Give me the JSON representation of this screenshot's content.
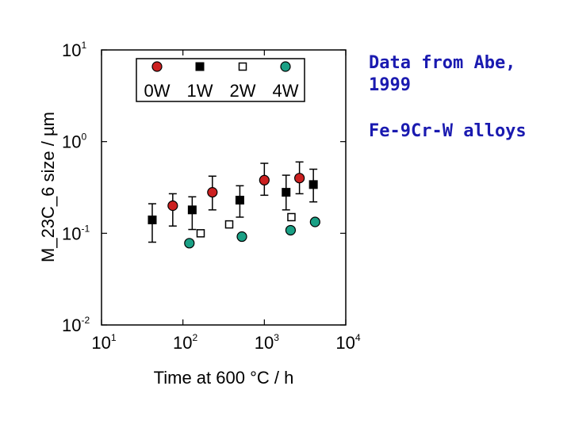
{
  "chart_data": {
    "type": "scatter",
    "xscale": "log",
    "yscale": "log",
    "xlabel": "Time at 600 °C / h",
    "ylabel": "M_23C_6 size / µm",
    "xlim": [
      10,
      10000
    ],
    "ylim": [
      0.01,
      10
    ],
    "x_ticks": [
      {
        "base": "10",
        "exp": "1"
      },
      {
        "base": "10",
        "exp": "2"
      },
      {
        "base": "10",
        "exp": "3"
      },
      {
        "base": "10",
        "exp": "4"
      }
    ],
    "y_ticks": [
      {
        "base": "10",
        "exp": "1"
      },
      {
        "base": "10",
        "exp": "0"
      },
      {
        "base": "10",
        "exp": "-1"
      },
      {
        "base": "10",
        "exp": "-2"
      }
    ],
    "series": [
      {
        "name": "0W",
        "marker": "circle",
        "fill": "#cc2020",
        "points": [
          {
            "x": 75,
            "y": 0.2,
            "ylo": 0.12,
            "yhi": 0.27
          },
          {
            "x": 230,
            "y": 0.28,
            "ylo": 0.18,
            "yhi": 0.42
          },
          {
            "x": 1000,
            "y": 0.38,
            "ylo": 0.26,
            "yhi": 0.58
          },
          {
            "x": 2700,
            "y": 0.4,
            "ylo": 0.27,
            "yhi": 0.6
          }
        ]
      },
      {
        "name": "1W",
        "marker": "square",
        "fill": "#000000",
        "points": [
          {
            "x": 42,
            "y": 0.14,
            "ylo": 0.08,
            "yhi": 0.21
          },
          {
            "x": 130,
            "y": 0.18,
            "ylo": 0.11,
            "yhi": 0.25
          },
          {
            "x": 500,
            "y": 0.23,
            "ylo": 0.15,
            "yhi": 0.33
          },
          {
            "x": 1850,
            "y": 0.28,
            "ylo": 0.18,
            "yhi": 0.43
          },
          {
            "x": 4000,
            "y": 0.34,
            "ylo": 0.22,
            "yhi": 0.5
          }
        ]
      },
      {
        "name": "2W",
        "marker": "square-open",
        "fill": "#ffffff",
        "points": [
          {
            "x": 165,
            "y": 0.1
          },
          {
            "x": 370,
            "y": 0.125
          },
          {
            "x": 2150,
            "y": 0.15
          }
        ]
      },
      {
        "name": "4W",
        "marker": "circle",
        "fill": "#1aa085",
        "points": [
          {
            "x": 120,
            "y": 0.078
          },
          {
            "x": 530,
            "y": 0.092
          },
          {
            "x": 2100,
            "y": 0.108
          },
          {
            "x": 4200,
            "y": 0.133
          }
        ]
      }
    ],
    "legend": {
      "placement": "top-left inside",
      "labels": [
        "0W",
        "1W",
        "2W",
        "4W"
      ]
    },
    "annotations": [
      "Data from Abe,",
      "1999",
      "Fe-9Cr-W alloys"
    ]
  },
  "colors": {
    "annotation": "#1a1ab0",
    "axis": "#000000"
  }
}
